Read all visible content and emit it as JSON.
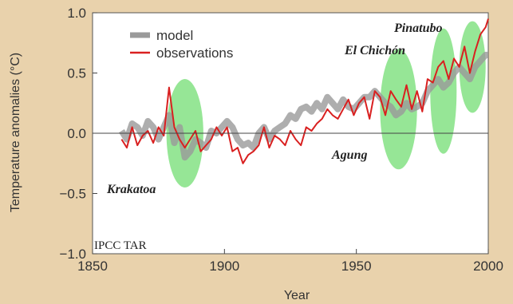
{
  "chart_data": {
    "type": "line",
    "xlabel": "Year",
    "ylabel": "Temperature anomalies (°C)",
    "xlim": [
      1850,
      2000
    ],
    "ylim": [
      -1.0,
      1.0
    ],
    "x_ticks": [
      1850,
      1900,
      1950,
      2000
    ],
    "y_ticks": [
      -1.0,
      -0.5,
      0.0,
      0.5,
      1.0
    ],
    "y_tick_labels": [
      "−1.0",
      "−0.5",
      "0.0",
      "0.5",
      "1.0"
    ],
    "grid": false,
    "zero_line": true,
    "legend": {
      "placement": "top-left",
      "entries": [
        "model",
        "observations"
      ]
    },
    "x": [
      1861,
      1863,
      1865,
      1867,
      1869,
      1871,
      1873,
      1875,
      1877,
      1879,
      1881,
      1883,
      1885,
      1887,
      1889,
      1891,
      1893,
      1895,
      1897,
      1899,
      1901,
      1903,
      1905,
      1907,
      1909,
      1911,
      1913,
      1915,
      1917,
      1919,
      1921,
      1923,
      1925,
      1927,
      1929,
      1931,
      1933,
      1935,
      1937,
      1939,
      1941,
      1943,
      1945,
      1947,
      1949,
      1951,
      1953,
      1955,
      1957,
      1959,
      1961,
      1963,
      1965,
      1967,
      1969,
      1971,
      1973,
      1975,
      1977,
      1979,
      1981,
      1983,
      1985,
      1987,
      1989,
      1991,
      1993,
      1995,
      1997,
      1999,
      2000
    ],
    "series": [
      {
        "name": "observations",
        "color": "#d92020",
        "values": [
          -0.05,
          -0.12,
          0.05,
          -0.1,
          -0.02,
          0.02,
          -0.08,
          0.05,
          -0.02,
          0.38,
          0.05,
          -0.05,
          -0.12,
          -0.05,
          0.02,
          -0.15,
          -0.1,
          -0.05,
          0.05,
          -0.02,
          0.05,
          -0.15,
          -0.12,
          -0.25,
          -0.18,
          -0.15,
          -0.1,
          0.05,
          -0.12,
          -0.02,
          -0.05,
          -0.1,
          0.02,
          -0.05,
          -0.1,
          0.05,
          0.02,
          0.08,
          0.12,
          0.2,
          0.15,
          0.12,
          0.2,
          0.28,
          0.15,
          0.25,
          0.3,
          0.12,
          0.35,
          0.3,
          0.15,
          0.35,
          0.28,
          0.22,
          0.4,
          0.2,
          0.35,
          0.18,
          0.45,
          0.42,
          0.55,
          0.6,
          0.45,
          0.62,
          0.55,
          0.72,
          0.5,
          0.68,
          0.82,
          0.88,
          0.95
        ]
      },
      {
        "name": "model",
        "color": "#9a9a9a",
        "values": [
          0.02,
          -0.05,
          0.08,
          0.05,
          -0.02,
          0.1,
          0.05,
          -0.05,
          0.05,
          0.15,
          -0.08,
          0.05,
          -0.2,
          -0.15,
          -0.05,
          -0.08,
          -0.12,
          0.02,
          0.0,
          0.05,
          0.1,
          0.05,
          -0.05,
          -0.1,
          -0.08,
          -0.12,
          0.0,
          0.05,
          -0.05,
          0.02,
          0.05,
          0.08,
          0.15,
          0.12,
          0.2,
          0.22,
          0.18,
          0.25,
          0.2,
          0.3,
          0.25,
          0.2,
          0.28,
          0.22,
          0.2,
          0.25,
          0.3,
          0.3,
          0.35,
          0.3,
          0.25,
          0.22,
          0.15,
          0.18,
          0.25,
          0.2,
          0.22,
          0.25,
          0.35,
          0.4,
          0.45,
          0.38,
          0.42,
          0.5,
          0.55,
          0.5,
          0.45,
          0.55,
          0.6,
          0.65,
          0.65
        ]
      }
    ],
    "annotations": [
      {
        "text": "Krakatoa",
        "year": 1883
      },
      {
        "text": "Agung",
        "year": 1963
      },
      {
        "text": "El Chichón",
        "year": 1982
      },
      {
        "text": "Pinatubo",
        "year": 1991
      }
    ],
    "source_label": "IPCC TAR"
  }
}
